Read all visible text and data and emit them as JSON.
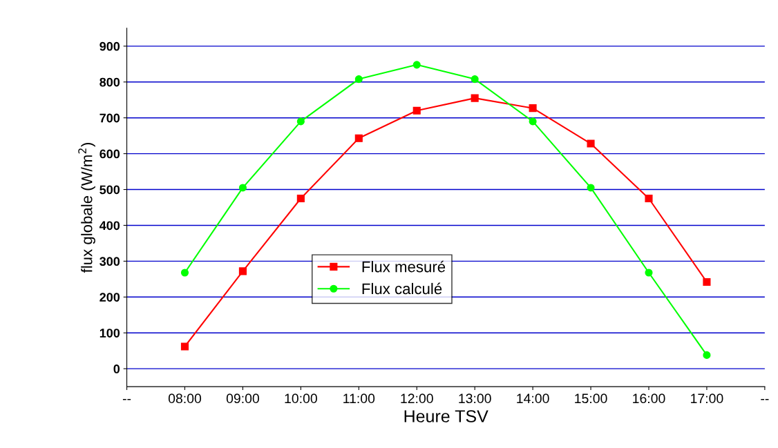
{
  "chart_data": {
    "type": "line",
    "xlabel": "Heure TSV",
    "ylabel": "flux globale (W/m$^{2}$)",
    "categories": [
      "--",
      "08:00",
      "09:00",
      "10:00",
      "11:00",
      "12:00",
      "13:00",
      "14:00",
      "15:00",
      "16:00",
      "17:00",
      "--"
    ],
    "series": [
      {
        "name": "Flux mesuré",
        "color": "#ff0000",
        "marker": "square",
        "values": [
          null,
          62,
          272,
          475,
          643,
          720,
          755,
          727,
          628,
          475,
          242,
          null
        ]
      },
      {
        "name": "Flux calculé",
        "color": "#00ff00",
        "marker": "circle",
        "values": [
          null,
          268,
          505,
          690,
          808,
          848,
          808,
          690,
          505,
          268,
          38,
          null
        ]
      }
    ],
    "ylim": [
      -50,
      950
    ],
    "yticks": [
      0,
      100,
      200,
      300,
      400,
      500,
      600,
      700,
      800,
      900
    ],
    "grid": "y",
    "legend": "center",
    "line_style": "solid"
  }
}
